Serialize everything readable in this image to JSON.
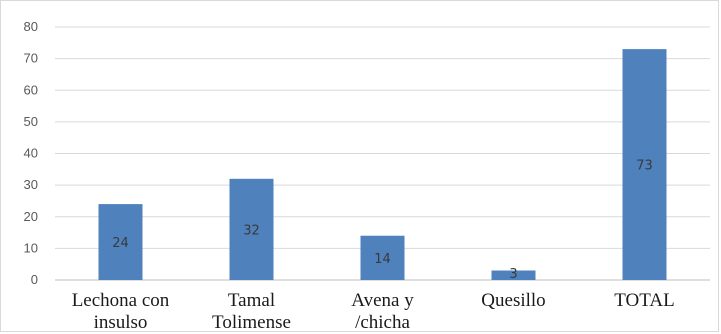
{
  "chart_data": {
    "type": "bar",
    "categories": [
      [
        "Lechona con",
        "insulso"
      ],
      [
        "Tamal",
        "Tolimense"
      ],
      [
        "Avena y",
        "/chicha"
      ],
      [
        "Quesillo"
      ],
      [
        "TOTAL"
      ]
    ],
    "values": [
      24,
      32,
      14,
      3,
      73
    ],
    "ylim": [
      0,
      80
    ],
    "yticks": [
      0,
      10,
      20,
      30,
      40,
      50,
      60,
      70,
      80
    ],
    "grid": true,
    "legend": "none",
    "bar_color": "#4f81bd",
    "grid_color": "#d9d9d9"
  }
}
